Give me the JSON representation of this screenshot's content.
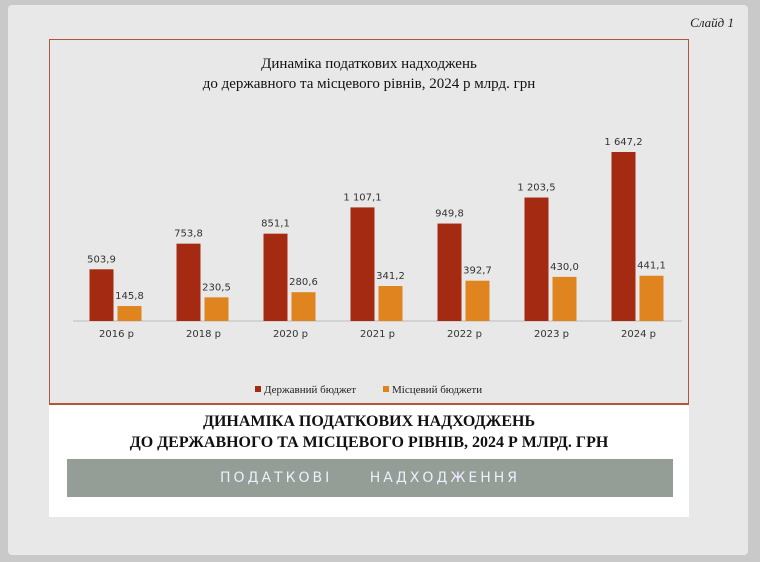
{
  "slide_label": "Слайд 1",
  "chart_data": {
    "type": "bar",
    "title_lines": [
      "Динаміка податкових надходжень",
      "до державного та місцевого рівнів, 2024 р млрд. грн"
    ],
    "categories": [
      "2016 р",
      "2018 р",
      "2020 р",
      "2021 р",
      "2022 р",
      "2023 р",
      "2024 р"
    ],
    "series": [
      {
        "name": "Державний бюджет",
        "color": "#a52a12",
        "values": [
          503.9,
          753.8,
          851.1,
          1107.1,
          949.8,
          1203.5,
          1647.2
        ],
        "labels": [
          "503,9",
          "753,8",
          "851,1",
          "1 107,1",
          "949,8",
          "1 203,5",
          "1 647,2"
        ]
      },
      {
        "name": "Місцевий бюджети",
        "color": "#e0841f",
        "values": [
          145.8,
          230.5,
          280.6,
          341.2,
          392.7,
          430.0,
          441.1
        ],
        "labels": [
          "145,8",
          "230,5",
          "280,6",
          "341,2",
          "392,7",
          "430,0",
          "441,1"
        ]
      }
    ],
    "legend": "bottom",
    "grid": false,
    "ylim": [
      0,
      1700
    ]
  },
  "panel": {
    "title_line1": "ДИНАМІКА ПОДАТКОВИХ НАДХОДЖЕНЬ",
    "title_line2": "ДО ДЕРЖАВНОГО ТА МІСЦЕВОГО РІВНІВ, 2024 Р МЛРД. ГРН",
    "banner": "ПОДАТКОВІ НАДХОДЖЕННЯ"
  }
}
